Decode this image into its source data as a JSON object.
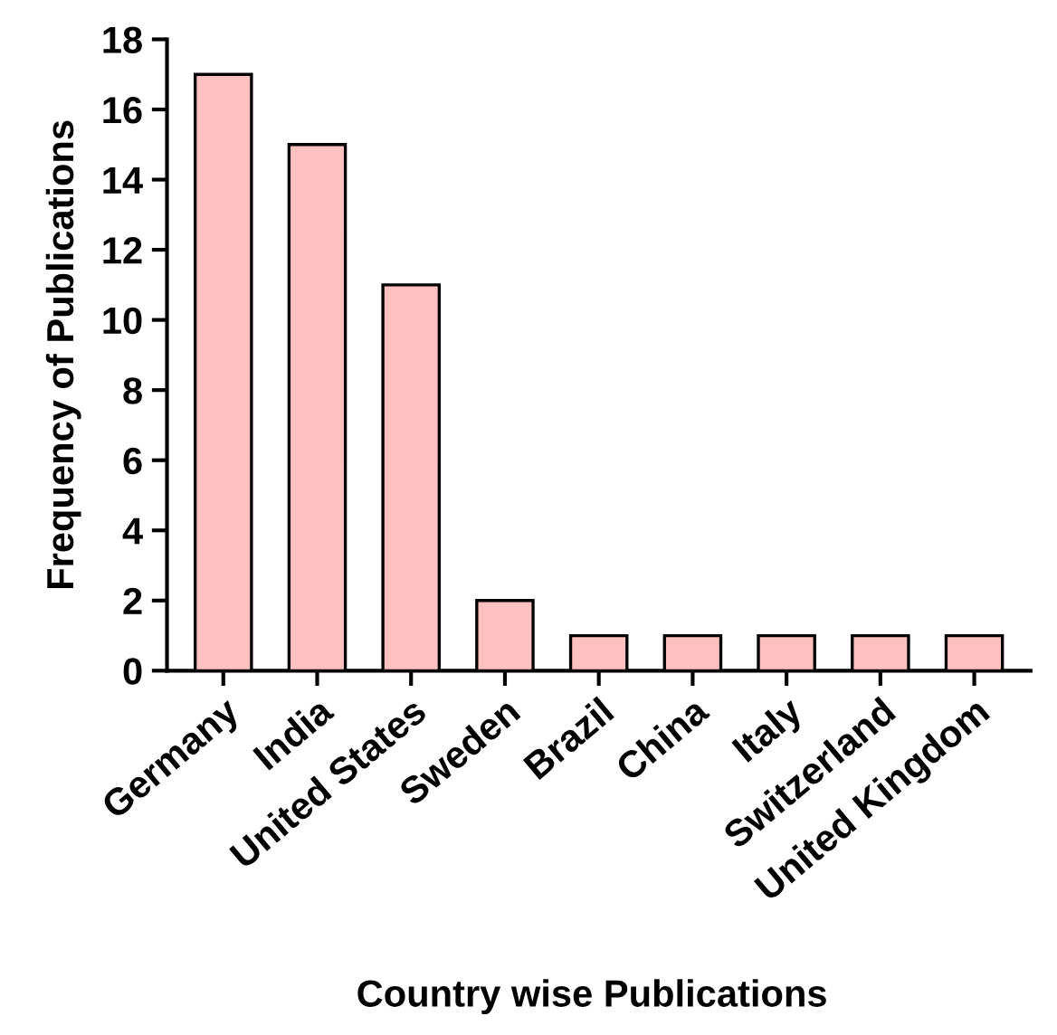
{
  "chart_data": {
    "type": "bar",
    "xlabel": "Country wise Publications",
    "ylabel": "Frequency of Publications",
    "categories": [
      "Germany",
      "India",
      "United States",
      "Sweden",
      "Brazil",
      "China",
      "Italy",
      "Switzerland",
      "United Kingdom"
    ],
    "values": [
      17,
      15,
      11,
      2,
      1,
      1,
      1,
      1,
      1
    ],
    "color": "#ffc0c0",
    "ylim": [
      0,
      18
    ],
    "yticks": [
      0,
      2,
      4,
      6,
      8,
      10,
      12,
      14,
      16,
      18
    ],
    "grid": false
  }
}
